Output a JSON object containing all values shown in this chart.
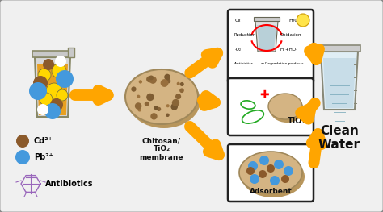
{
  "bg_color": "#f0f0f0",
  "border_color": "#888888",
  "arrow_color": "#FFA500",
  "title": "Chitosan/\nTiO₂\nmembrane",
  "clean_water_label": "Clean\nWater",
  "tio2_label": "TiO₂",
  "adsorbent_label": "Adsorbent",
  "cd_label": "Cd²⁺",
  "pb_label": "Pb²⁺",
  "antibiotics_label": "Antibiotics",
  "membrane_color": "#D4B483",
  "membrane_edge": "#A0885A",
  "membrane_shadow": "#B8965C",
  "box_bg": "#ffffff",
  "box_border": "#222222",
  "cd_dot_color": "#8B5A2B",
  "pb_dot_color": "#4488DD",
  "yellow_dot_color": "#FFD700",
  "green_dot_color": "#90EE90"
}
